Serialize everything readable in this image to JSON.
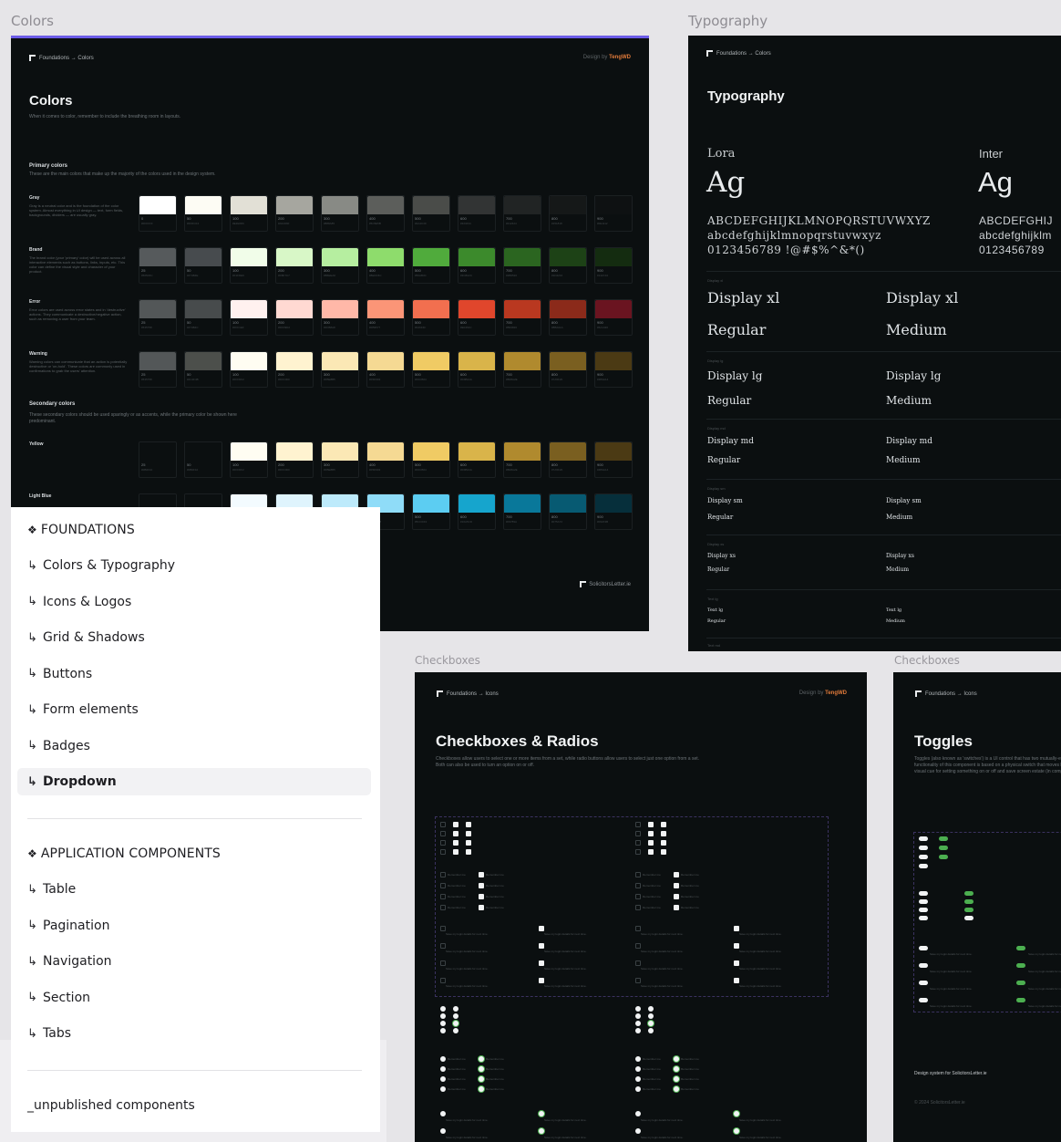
{
  "frame_labels": {
    "colors": "Colors",
    "typography": "Typography",
    "checkboxes_1": "Checkboxes",
    "checkboxes_2": "Checkboxes"
  },
  "colors_frame": {
    "breadcrumb": "Foundations → Colors",
    "designer_prefix": "Design by ",
    "designer_name": "TengWD",
    "title": "Colors",
    "description": "When it comes to color, remember to include the breathing room in layouts.",
    "primary_title": "Primary colors",
    "primary_desc": "These are the main colors that make up the majority of the colors used in the design system.",
    "secondary_title": "Secondary colors",
    "secondary_desc": "These secondary colors should be used sparingly or as accents, while the primary color be shown here predominant.",
    "footer": "SolicitorsLetter.ie",
    "rows": [
      {
        "label": "Gray",
        "desc": "Gray is a neutral color and is the foundation of the color system. Almost everything in UI design — text, form fields, backgrounds, dividers — are usually gray.",
        "colors": [
          "#ffffff",
          "#fdfcf4",
          "#e2e0d6",
          "#a6a69f",
          "#888a85",
          "#5c5e5b",
          "#4a4c49",
          "#323434",
          "#212424",
          "#151818",
          "#0e1112"
        ],
        "labels": [
          "0",
          "50",
          "100",
          "200",
          "300",
          "400",
          "500",
          "600",
          "700",
          "800",
          "900"
        ]
      },
      {
        "label": "Brand",
        "desc": "The brand color (your 'primary' color) will be used across all interactive elements such as buttons, links, inputs, etc. This color can define the visual style and character of your product.",
        "colors": [
          "#565a5c",
          "#474b4e",
          "#f1fde9",
          "#d8f7c7",
          "#b6eea0",
          "#8edc6c",
          "#50ab3c",
          "#3c8a2c",
          "#2b6520",
          "#1d4216",
          "#142c10"
        ],
        "labels": [
          "25",
          "50",
          "100",
          "200",
          "300",
          "400",
          "500",
          "600",
          "700",
          "800",
          "900"
        ]
      },
      {
        "label": "Error",
        "desc": "Error colors are used across error states and in 'destructive' actions. They communicate a destructive/negative action, such as removing a user from your team.",
        "colors": [
          "#535758",
          "#474b4c",
          "#fff1ef",
          "#ffd9d2",
          "#ffb8a8",
          "#fb9577",
          "#f26f4f",
          "#e0462c",
          "#b93820",
          "#8b2a1a",
          "#6a1420"
        ],
        "labels": [
          "25",
          "50",
          "100",
          "200",
          "300",
          "400",
          "500",
          "600",
          "700",
          "800",
          "900"
        ]
      },
      {
        "label": "Warning",
        "desc": "Warning colors can communicate that an action is potentially destructive or 'on-hold'. These colors are commonly used in confirmations to grab the users' attention.",
        "colors": [
          "#535758",
          "#4c4f4b",
          "#fffdf2",
          "#fff3d0",
          "#fbe8b5",
          "#f5d993",
          "#f0cb64",
          "#d9b44a",
          "#b08a2e",
          "#7a5f20",
          "#4b3a14"
        ],
        "labels": [
          "25",
          "50",
          "100",
          "200",
          "300",
          "400",
          "500",
          "600",
          "700",
          "800",
          "900"
        ]
      },
      {
        "label": "Yellow",
        "desc": "",
        "colors": [
          "#0b0f10",
          "#0b0f10",
          "#fffdf2",
          "#fff3d0",
          "#fbe8b5",
          "#f5d993",
          "#f0cb64",
          "#d9b44a",
          "#b08a2e",
          "#7a5f20",
          "#4b3a14"
        ],
        "labels": [
          "25",
          "50",
          "100",
          "200",
          "300",
          "400",
          "500",
          "600",
          "700",
          "800",
          "900"
        ]
      },
      {
        "label": "Light Blue",
        "desc": "",
        "colors": [
          "#0b0f10",
          "#0b0f10",
          "#f3fbff",
          "#dff4fd",
          "#bdeafb",
          "#8fdcf8",
          "#5ccdf2",
          "#16a5cd",
          "#09789a",
          "#075a72",
          "#062f3b"
        ],
        "labels": [
          "25",
          "50",
          "100",
          "200",
          "300",
          "400",
          "500",
          "600",
          "700",
          "800",
          "900"
        ]
      }
    ]
  },
  "typography_frame": {
    "breadcrumb": "Foundations → Colors",
    "title": "Typography",
    "font1": "Lora",
    "font2": "Inter",
    "ag": "Ag",
    "upper": "ABCDEFGHIJKLMNOPQRSTUVWXYZ",
    "lower": "abcdefghijklmnopqrstuvwxyz",
    "digits": "0123456789 !@#$%^&*()",
    "upper_inter": "ABCDEFGHIJ",
    "lower_inter": "abcdefghijklm",
    "digits_inter": "0123456789",
    "samples": [
      {
        "group": "Display xl",
        "left": "Display xl",
        "right": "Display xl",
        "w1": "Regular",
        "w2": "Medium",
        "size": 16
      },
      {
        "group": "Display lg",
        "left": "Display lg",
        "right": "Display lg",
        "w1": "Regular",
        "w2": "Medium",
        "size": 12
      },
      {
        "group": "Display md",
        "left": "Display md",
        "right": "Display md",
        "w1": "Regular",
        "w2": "Medium",
        "size": 9
      },
      {
        "group": "Display sm",
        "left": "Display sm",
        "right": "Display sm",
        "w1": "Regular",
        "w2": "Medium",
        "size": 7
      },
      {
        "group": "Display xs",
        "left": "Display xs",
        "right": "Display xs",
        "w1": "Regular",
        "w2": "Medium",
        "size": 6
      },
      {
        "group": "Text lg",
        "left": "Text lg",
        "right": "Text lg",
        "w1": "Regular",
        "w2": "Medium",
        "size": 5
      }
    ],
    "last_group": "Text md"
  },
  "checkbox_frame": {
    "breadcrumb": "Foundations → Icons",
    "designer_prefix": "Design by ",
    "designer_name": "TengWD",
    "title": "Checkboxes & Radios",
    "description": "Checkboxes allow users to select one or more items from a set, while radio buttons allow users to select just one option from a set. Both can also be used to turn an option on or off.",
    "item_label": "Remember me",
    "item_hint": "Save my login details for next time."
  },
  "toggles_frame": {
    "breadcrumb": "Foundations → Icons",
    "title": "Toggles",
    "description": "Toggles (also known as 'switches') is a UI control that has two mutually-exclusive states, such as ON and OFF. The design and functionality of this component is based on a physical switch that moves between two states; things ON or OFF. Toggles are a great visual cue for setting something on or off and save screen estate (in comparison with two radio buttons).",
    "item_hint": "Save my login details for next time.",
    "footer": "Design system for SolicitorsLetter.ie",
    "copyright": "© 2024 SolicitorsLetter.ie"
  },
  "sidebar": {
    "foundations_header": "FOUNDATIONS",
    "foundation_items": [
      "Colors & Typography",
      "Icons & Logos",
      "Grid & Shadows",
      "Buttons",
      "Form elements",
      "Badges",
      "Dropdown"
    ],
    "active_item": "Dropdown",
    "app_header": "APPLICATION COMPONENTS",
    "app_items": [
      "Table",
      "Pagination",
      "Navigation",
      "Section",
      "Tabs"
    ],
    "unpublished": "_unpublished components",
    "arrow_glyph": "↳",
    "diamond_glyph": "❖"
  }
}
